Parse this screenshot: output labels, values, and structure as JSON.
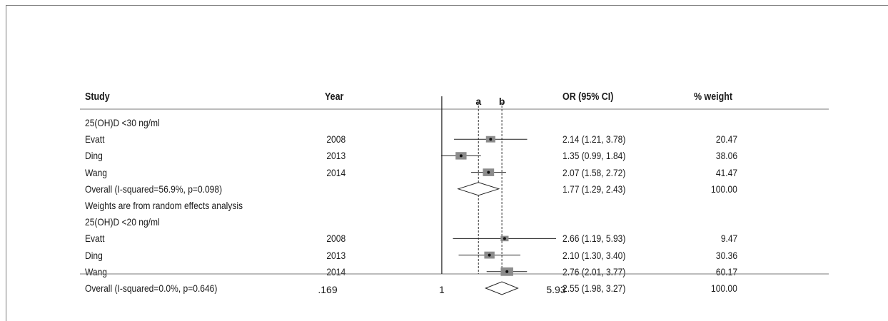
{
  "header": {
    "study": "Study",
    "year": "Year",
    "ref_a": "a",
    "ref_b": "b",
    "or_ci": "OR (95% CI)",
    "weight": "% weight"
  },
  "rows": [
    {
      "kind": "group",
      "label": "25(OH)D <30 ng/ml"
    },
    {
      "kind": "study",
      "study": "Evatt",
      "year": "2008",
      "or": 2.14,
      "lo": 1.21,
      "hi": 3.78,
      "ci_text": "2.14 (1.21, 3.78)",
      "weight": "20.47"
    },
    {
      "kind": "study",
      "study": "Ding",
      "year": "2013",
      "or": 1.35,
      "lo": 0.99,
      "hi": 1.84,
      "ci_text": "1.35 (0.99, 1.84)",
      "weight": "38.06"
    },
    {
      "kind": "study",
      "study": "Wang",
      "year": "2014",
      "or": 2.07,
      "lo": 1.58,
      "hi": 2.72,
      "ci_text": "2.07 (1.58, 2.72)",
      "weight": "41.47"
    },
    {
      "kind": "overall",
      "study": "Overall (I-squared=56.9%, p=0.098)",
      "or": 1.77,
      "lo": 1.29,
      "hi": 2.43,
      "ci_text": "1.77 (1.29, 2.43)",
      "weight": "100.00"
    },
    {
      "kind": "note",
      "label": "Weights are from random effects analysis"
    },
    {
      "kind": "group",
      "label": "25(OH)D <20 ng/ml"
    },
    {
      "kind": "study",
      "study": "Evatt",
      "year": "2008",
      "or": 2.66,
      "lo": 1.19,
      "hi": 5.93,
      "ci_text": "2.66 (1.19, 5.93)",
      "weight": "9.47"
    },
    {
      "kind": "study",
      "study": "Ding",
      "year": "2013",
      "or": 2.1,
      "lo": 1.3,
      "hi": 3.4,
      "ci_text": "2.10 (1.30, 3.40)",
      "weight": "30.36"
    },
    {
      "kind": "study",
      "study": "Wang",
      "year": "2014",
      "or": 2.76,
      "lo": 2.01,
      "hi": 3.77,
      "ci_text": "2.76 (2.01, 3.77)",
      "weight": "60.17"
    },
    {
      "kind": "overall",
      "study": "Overall (I-squared=0.0%, p=0.646)",
      "or": 2.55,
      "lo": 1.98,
      "hi": 3.27,
      "ci_text": "2.55  (1.98, 3.27)",
      "weight": "100.00"
    }
  ],
  "chart_data": {
    "type": "forest",
    "scale": "log",
    "xlim": [
      0.169,
      5.93
    ],
    "xticks": [
      ".169",
      "1",
      "5.93"
    ],
    "null_line": 1,
    "reference_lines": [
      {
        "label": "a",
        "value": 1.77
      },
      {
        "label": "b",
        "value": 2.55
      }
    ],
    "subgroups": [
      {
        "name": "25(OH)D <30 ng/ml",
        "studies": [
          {
            "study": "Evatt",
            "year": 2008,
            "or": 2.14,
            "ci": [
              1.21,
              3.78
            ],
            "weight": 20.47
          },
          {
            "study": "Ding",
            "year": 2013,
            "or": 1.35,
            "ci": [
              0.99,
              1.84
            ],
            "weight": 38.06
          },
          {
            "study": "Wang",
            "year": 2014,
            "or": 2.07,
            "ci": [
              1.58,
              2.72
            ],
            "weight": 41.47
          }
        ],
        "overall": {
          "or": 1.77,
          "ci": [
            1.29,
            2.43
          ],
          "weight": 100.0,
          "i_squared": "56.9%",
          "p": 0.098
        }
      },
      {
        "name": "25(OH)D <20 ng/ml",
        "studies": [
          {
            "study": "Evatt",
            "year": 2008,
            "or": 2.66,
            "ci": [
              1.19,
              5.93
            ],
            "weight": 9.47
          },
          {
            "study": "Ding",
            "year": 2013,
            "or": 2.1,
            "ci": [
              1.3,
              3.4
            ],
            "weight": 30.36
          },
          {
            "study": "Wang",
            "year": 2014,
            "or": 2.76,
            "ci": [
              2.01,
              3.77
            ],
            "weight": 60.17
          }
        ],
        "overall": {
          "or": 2.55,
          "ci": [
            1.98,
            3.27
          ],
          "weight": 100.0,
          "i_squared": "0.0%",
          "p": 0.646
        }
      }
    ]
  }
}
